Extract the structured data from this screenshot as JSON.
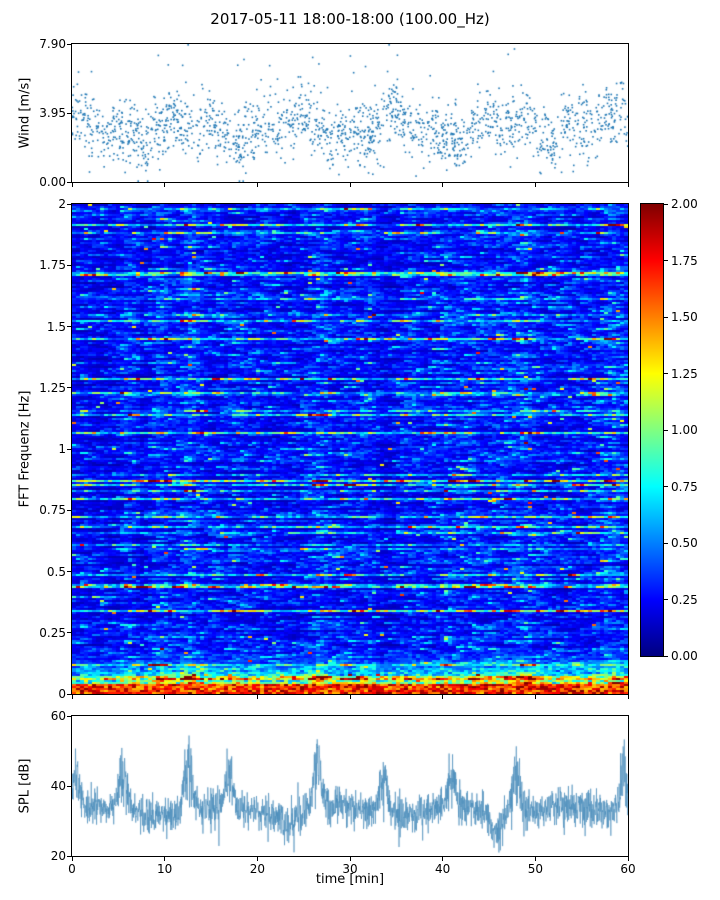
{
  "title": "2017-05-11 18:00-18:00 (100.00_Hz)",
  "chart_data": [
    {
      "type": "scatter",
      "name": "wind-speed",
      "ylabel": "Wind [m/s]",
      "ylim": [
        0.0,
        7.9
      ],
      "yticks": [
        "7.90",
        "3.95",
        "0.00"
      ],
      "xlim": [
        0,
        60
      ],
      "point_count": 1800,
      "mean_wind": 3.1,
      "std_wind": 0.9,
      "marker_color": "#1f77b4"
    },
    {
      "type": "heatmap",
      "name": "fft-spectrogram",
      "ylabel": "FFT Frequenz [Hz]",
      "ylim": [
        0,
        2
      ],
      "yticks": [
        "2",
        "1.75",
        "1.5",
        "1.25",
        "1",
        "0.75",
        "0.5",
        "0.25",
        "0"
      ],
      "xlim": [
        0,
        60
      ],
      "colormap": "jet",
      "clim": [
        0,
        2
      ],
      "colorbar_ticks": [
        "2.00",
        "1.75",
        "1.50",
        "1.25",
        "1.00",
        "0.75",
        "0.50",
        "0.25",
        "0.00"
      ],
      "low_freq_band_max_hz": 0.2,
      "bright_columns_min": [
        6,
        9.5,
        12.5,
        26.5,
        48.5,
        58
      ],
      "dark_columns_min": [
        33.5
      ]
    },
    {
      "type": "line",
      "name": "spl",
      "ylabel": "SPL [dB]",
      "xlabel": "time [min]",
      "ylim": [
        20,
        60
      ],
      "yticks": [
        "60",
        "40",
        "20"
      ],
      "xticks": [
        "0",
        "10",
        "20",
        "30",
        "40",
        "50",
        "60"
      ],
      "baseline_db": 33,
      "noise_db": 3,
      "peaks_min": [
        0.4,
        5.5,
        12.5,
        17,
        26.5,
        33.5,
        41,
        48,
        59.5
      ],
      "peak_db": [
        50,
        53,
        57,
        50,
        57,
        52,
        50,
        53,
        55
      ],
      "dips_min": [
        23.5,
        45.8
      ],
      "dip_db": [
        28,
        25
      ],
      "line_color": "#4a8dbb"
    }
  ]
}
